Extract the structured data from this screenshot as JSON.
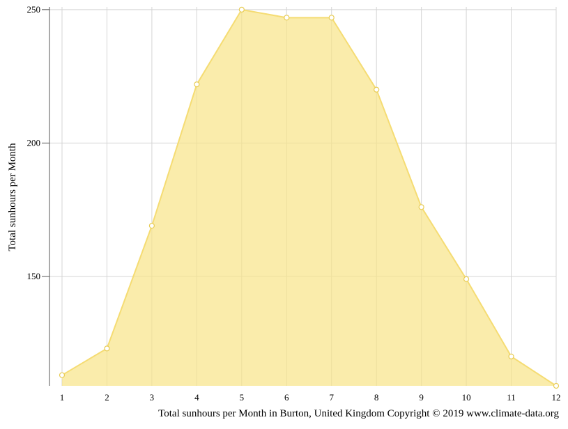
{
  "colors": {
    "area_fill": "#f8e488",
    "area_stroke": "#f5dc73",
    "point_fill": "#ffffff",
    "point_stroke": "#e8cc55",
    "grid": "#d4d4d4",
    "axis": "#555555"
  },
  "chart_data": {
    "type": "area",
    "title": "",
    "ylabel": "Total sunhours per Month",
    "xlabel": "",
    "caption": "Total sunhours per Month in Burton, United Kingdom Copyright © 2019 www.climate-data.org",
    "x": [
      1,
      2,
      3,
      4,
      5,
      6,
      7,
      8,
      9,
      10,
      11,
      12
    ],
    "x_tick_labels": [
      "1",
      "2",
      "3",
      "4",
      "5",
      "6",
      "7",
      "8",
      "9",
      "10",
      "11",
      "12"
    ],
    "y_ticks": [
      150,
      200,
      250
    ],
    "y_tick_labels": [
      "150",
      "200",
      "250"
    ],
    "ylim": [
      109,
      251
    ],
    "grid": true,
    "legend": "none",
    "series": [
      {
        "values": [
          113,
          123,
          169,
          222,
          250,
          247,
          247,
          220,
          176,
          149,
          120,
          109
        ]
      }
    ]
  }
}
